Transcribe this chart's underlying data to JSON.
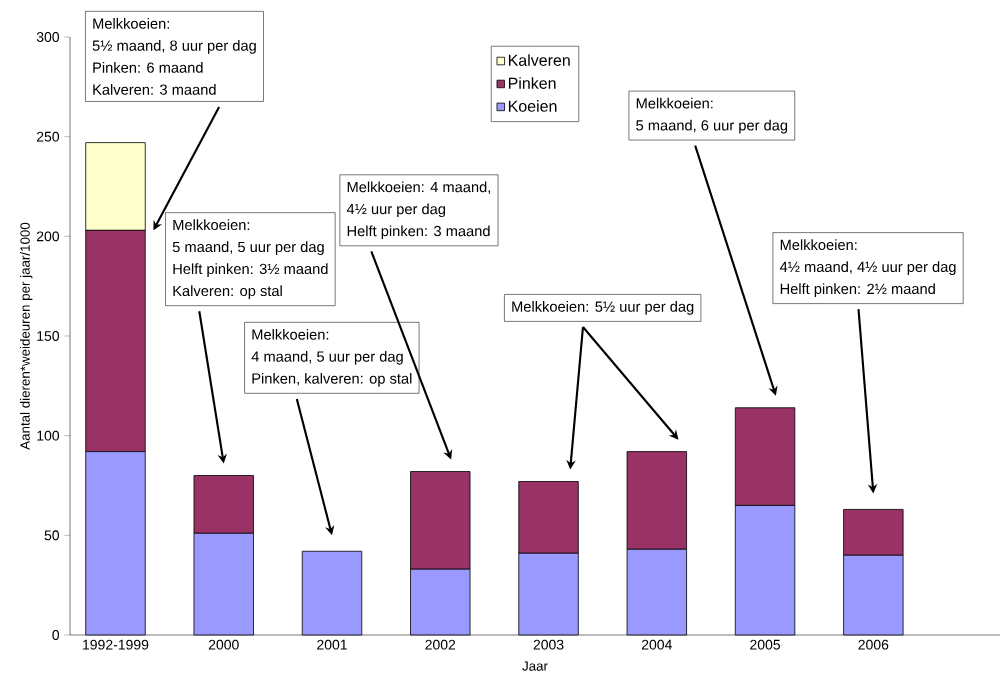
{
  "chart_data": {
    "type": "bar",
    "stacked": true,
    "xlabel": "Jaar",
    "ylabel": "Aantal dieren*weideuren per jaar/1000",
    "categories": [
      "1992-1999",
      "2000",
      "2001",
      "2002",
      "2003",
      "2004",
      "2005",
      "2006"
    ],
    "series": [
      {
        "name": "Koeien",
        "color": "#9999ff",
        "values": [
          92,
          51,
          42,
          33,
          41,
          43,
          65,
          40
        ]
      },
      {
        "name": "Pinken",
        "color": "#993366",
        "values": [
          111,
          29,
          null,
          49,
          36,
          49,
          49,
          23
        ]
      },
      {
        "name": "Kalveren",
        "color": "#ffffcc",
        "values": [
          44,
          null,
          null,
          null,
          null,
          null,
          null,
          null
        ]
      }
    ],
    "ylim": [
      0,
      300
    ],
    "yticks": [
      0,
      50,
      100,
      150,
      200,
      250,
      300
    ],
    "legend": "top",
    "annotations": [
      "Melkkoeien:",
      "5½ maand, 8 uur per dag",
      "Pinken: 6 maand",
      "Kalveren: 3 maand",
      "Melkkoeien:",
      "5 maand, 5 uur per dag",
      "Helft pinken: 3½ maand",
      "Kalveren: op stal",
      "Melkkoeien:",
      "4 maand, 5 uur per dag",
      "Pinken, kalveren: op stal",
      "Melkkoeien: 4 maand,",
      "4½ uur per dag",
      "Helft pinken: 3 maand",
      "Melkkoeien: 5½ uur per dag",
      "Melkkoeien:",
      "5 maand, 6 uur per dag",
      "Melkkoeien:",
      "4½ maand, 4½ uur per dag",
      "Helft pinken: 2½ maand"
    ]
  }
}
